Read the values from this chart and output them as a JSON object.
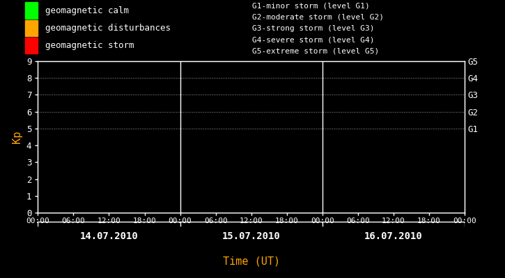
{
  "bg_color": "#000000",
  "text_color": "#ffffff",
  "orange_color": "#ffa500",
  "ylabel": "Kp",
  "xlabel": "Time (UT)",
  "ylim": [
    0,
    9
  ],
  "yticks": [
    0,
    1,
    2,
    3,
    4,
    5,
    6,
    7,
    8,
    9
  ],
  "dates": [
    "14.07.2010",
    "15.07.2010",
    "16.07.2010"
  ],
  "time_labels": [
    "00:00",
    "06:00",
    "12:00",
    "18:00",
    "00:00",
    "06:00",
    "12:00",
    "18:00",
    "00:00",
    "06:00",
    "12:00",
    "18:00",
    "00:00"
  ],
  "dotted_lines": [
    5,
    6,
    7,
    8,
    9
  ],
  "right_labels": [
    [
      "G1",
      5
    ],
    [
      "G2",
      6
    ],
    [
      "G3",
      7
    ],
    [
      "G4",
      8
    ],
    [
      "G5",
      9
    ]
  ],
  "legend_items": [
    {
      "color": "#00ff00",
      "label": "geomagnetic calm"
    },
    {
      "color": "#ffa500",
      "label": "geomagnetic disturbances"
    },
    {
      "color": "#ff0000",
      "label": "geomagnetic storm"
    }
  ],
  "storm_legend": [
    "G1-minor storm (level G1)",
    "G2-moderate storm (level G2)",
    "G3-strong storm (level G3)",
    "G4-severe storm (level G4)",
    "G5-extreme storm (level G5)"
  ],
  "axis_color": "#ffffff",
  "figsize": [
    7.25,
    4.0
  ],
  "dpi": 100
}
